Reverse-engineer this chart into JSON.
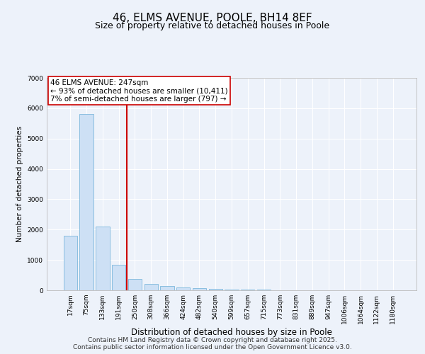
{
  "title": "46, ELMS AVENUE, POOLE, BH14 8EF",
  "subtitle": "Size of property relative to detached houses in Poole",
  "xlabel": "Distribution of detached houses by size in Poole",
  "ylabel": "Number of detached properties",
  "categories": [
    "17sqm",
    "75sqm",
    "133sqm",
    "191sqm",
    "250sqm",
    "308sqm",
    "366sqm",
    "424sqm",
    "482sqm",
    "540sqm",
    "599sqm",
    "657sqm",
    "715sqm",
    "773sqm",
    "831sqm",
    "889sqm",
    "947sqm",
    "1006sqm",
    "1064sqm",
    "1122sqm",
    "1180sqm"
  ],
  "values": [
    1800,
    5800,
    2100,
    830,
    380,
    220,
    130,
    100,
    70,
    50,
    30,
    20,
    15,
    10,
    8,
    5,
    4,
    3,
    2,
    2,
    1
  ],
  "bar_color": "#cde0f5",
  "bar_edge_color": "#6aaed6",
  "red_line_index": 4,
  "red_line_color": "#cc0000",
  "annotation_text": "46 ELMS AVENUE: 247sqm\n← 93% of detached houses are smaller (10,411)\n7% of semi-detached houses are larger (797) →",
  "annotation_box_color": "#ffffff",
  "annotation_box_edge": "#cc0000",
  "annotation_fontsize": 7.5,
  "background_color": "#edf2fa",
  "grid_color": "#ffffff",
  "ylim": [
    0,
    7000
  ],
  "yticks": [
    0,
    1000,
    2000,
    3000,
    4000,
    5000,
    6000,
    7000
  ],
  "footer_line1": "Contains HM Land Registry data © Crown copyright and database right 2025.",
  "footer_line2": "Contains public sector information licensed under the Open Government Licence v3.0.",
  "title_fontsize": 11,
  "subtitle_fontsize": 9,
  "xlabel_fontsize": 8.5,
  "ylabel_fontsize": 7.5,
  "tick_fontsize": 6.5,
  "footer_fontsize": 6.5
}
